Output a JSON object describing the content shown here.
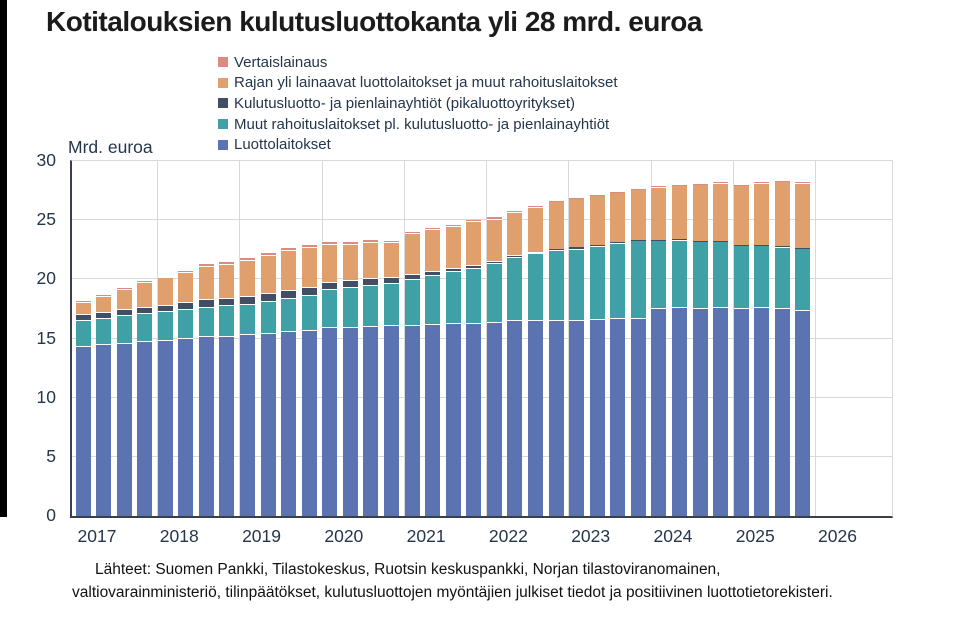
{
  "title": "Kotitalouksien kulutusluottokanta yli 28 mrd. euroa",
  "unit_label": "Mrd. euroa",
  "source_line1": "Lähteet: Suomen Pankki, Tilastokeskus, Ruotsin keskuspankki, Norjan tilastoviranomainen,",
  "source_line2": "valtiovarainministeriö, tilinpäätökset, kulutusluottojen myöntäjien julkiset tiedot ja positiivinen luottotietorekisteri.",
  "legend": [
    {
      "label": "Vertaislainaus",
      "color": "#dd8a84"
    },
    {
      "label": "Rajan yli lainaavat luottolaitokset ja muut rahoituslaitokset",
      "color": "#dfa06d"
    },
    {
      "label": "Kulutusluotto- ja pienlainayhtiöt (pikaluottoyritykset)",
      "color": "#414e63"
    },
    {
      "label": "Muut rahoituslaitokset pl. kulutusluotto- ja pienlainayhtiöt",
      "color": "#3fa0a5"
    },
    {
      "label": "Luottolaitokset",
      "color": "#5b73b1"
    }
  ],
  "chart_data": {
    "type": "bar",
    "stacked": true,
    "title": "Kotitalouksien kulutusluottokanta yli 28 mrd. euroa",
    "xlabel": "",
    "ylabel": "Mrd. euroa",
    "ylim": [
      0,
      30
    ],
    "yticks": [
      0,
      5,
      10,
      15,
      20,
      25,
      30
    ],
    "grid": true,
    "legend_position": "top",
    "x_year_labels": [
      "2017",
      "2018",
      "2019",
      "2020",
      "2021",
      "2022",
      "2023",
      "2024",
      "2025",
      "2026"
    ],
    "categories": [
      "2017Q1",
      "2017Q2",
      "2017Q3",
      "2017Q4",
      "2018Q1",
      "2018Q2",
      "2018Q3",
      "2018Q4",
      "2019Q1",
      "2019Q2",
      "2019Q3",
      "2019Q4",
      "2020Q1",
      "2020Q2",
      "2020Q3",
      "2020Q4",
      "2021Q1",
      "2021Q2",
      "2021Q3",
      "2021Q4",
      "2022Q1",
      "2022Q2",
      "2022Q3",
      "2022Q4",
      "2023Q1",
      "2023Q2",
      "2023Q3",
      "2023Q4",
      "2024Q1",
      "2024Q2",
      "2024Q3",
      "2024Q4",
      "2025Q1",
      "2025Q2",
      "2025Q3",
      "2025Q4"
    ],
    "series": [
      {
        "name": "Luottolaitokset",
        "color": "#5b73b1",
        "values": [
          14.35,
          14.5,
          14.65,
          14.8,
          14.9,
          15.05,
          15.2,
          15.25,
          15.35,
          15.5,
          15.6,
          15.7,
          15.95,
          16.0,
          16.05,
          16.1,
          16.15,
          16.25,
          16.3,
          16.35,
          16.4,
          16.55,
          16.6,
          16.6,
          16.55,
          16.65,
          16.7,
          16.75,
          17.55,
          17.65,
          17.6,
          17.7,
          17.6,
          17.65,
          17.55,
          17.4
        ]
      },
      {
        "name": "Muut rahoituslaitokset pl. kulutusluotto- ja pienlainayhtiöt",
        "color": "#3fa0a5",
        "values": [
          2.2,
          2.25,
          2.3,
          2.35,
          2.4,
          2.45,
          2.5,
          2.55,
          2.6,
          2.7,
          2.85,
          3.0,
          3.2,
          3.35,
          3.5,
          3.6,
          3.9,
          4.15,
          4.4,
          4.65,
          4.95,
          5.3,
          5.6,
          5.85,
          6.05,
          6.2,
          6.4,
          6.55,
          5.75,
          5.7,
          5.6,
          5.5,
          5.3,
          5.25,
          5.2,
          5.25
        ]
      },
      {
        "name": "Kulutusluotto- ja pienlainayhtiöt (pikaluottoyritykset)",
        "color": "#414e63",
        "values": [
          0.5,
          0.5,
          0.52,
          0.55,
          0.55,
          0.58,
          0.6,
          0.62,
          0.62,
          0.63,
          0.65,
          0.65,
          0.63,
          0.6,
          0.55,
          0.5,
          0.38,
          0.32,
          0.28,
          0.25,
          0.2,
          0.17,
          0.14,
          0.12,
          0.1,
          0.08,
          0.07,
          0.06,
          0.05,
          0.04,
          0.04,
          0.03,
          0.03,
          0.03,
          0.03,
          0.03
        ]
      },
      {
        "name": "Rajan yli lainaavat luottolaitokset ja muut rahoituslaitokset",
        "color": "#dfa06d",
        "values": [
          1.07,
          1.37,
          1.71,
          2.11,
          2.31,
          2.56,
          2.86,
          2.91,
          3.1,
          3.23,
          3.35,
          3.4,
          3.18,
          3.07,
          3.08,
          2.94,
          3.48,
          3.51,
          3.52,
          3.67,
          3.59,
          3.69,
          3.78,
          4.01,
          4.14,
          4.17,
          4.19,
          4.25,
          4.47,
          4.58,
          4.84,
          4.95,
          5.05,
          5.25,
          5.5,
          5.5
        ]
      },
      {
        "name": "Vertaislainaus",
        "color": "#dd8a84",
        "values": [
          0.08,
          0.1,
          0.12,
          0.14,
          0.16,
          0.18,
          0.2,
          0.22,
          0.23,
          0.24,
          0.25,
          0.25,
          0.24,
          0.23,
          0.22,
          0.21,
          0.19,
          0.17,
          0.15,
          0.13,
          0.11,
          0.09,
          0.08,
          0.07,
          0.06,
          0.05,
          0.04,
          0.04,
          0.03,
          0.03,
          0.02,
          0.02,
          0.02,
          0.02,
          0.02,
          0.02
        ]
      }
    ]
  }
}
